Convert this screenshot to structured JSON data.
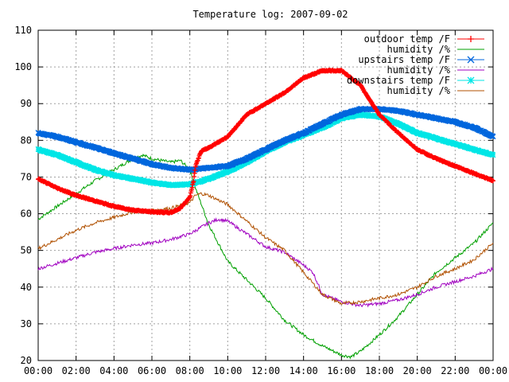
{
  "chart_data": {
    "type": "line",
    "title": "Temperature log: 2007-09-02",
    "xlabel": "",
    "ylabel": "",
    "xlim": [
      0,
      24
    ],
    "ylim": [
      20,
      110
    ],
    "grid": true,
    "legend_position": "top-right",
    "x_ticks": [
      "00:00",
      "02:00",
      "04:00",
      "06:00",
      "08:00",
      "10:00",
      "12:00",
      "14:00",
      "16:00",
      "18:00",
      "20:00",
      "22:00",
      "00:00"
    ],
    "y_ticks": [
      "20",
      "30",
      "40",
      "50",
      "60",
      "70",
      "80",
      "90",
      "100",
      "110"
    ],
    "series": [
      {
        "name": "outdoor temp /F",
        "color": "#ff0000",
        "marker": "plus",
        "x": [
          0,
          1,
          2,
          3,
          4,
          5,
          6,
          7,
          7.5,
          8,
          8.2,
          8.3,
          8.6,
          9,
          10,
          11,
          12,
          13,
          14,
          15,
          16,
          17,
          17.5,
          18,
          19,
          20,
          21,
          22,
          23,
          24
        ],
        "y": [
          69.5,
          67,
          65,
          63.5,
          62,
          61,
          60.5,
          60.3,
          61.5,
          64.5,
          69,
          73,
          77,
          78,
          81,
          87,
          90,
          93,
          97,
          99,
          99,
          95,
          91,
          87,
          82,
          77.5,
          75,
          73,
          71,
          69
        ]
      },
      {
        "name": "humidity /%",
        "color": "#00a000",
        "x": [
          0,
          1,
          2,
          3,
          4,
          5,
          5.5,
          6,
          7,
          7.5,
          8,
          8.3,
          9,
          10,
          11,
          12,
          13,
          14,
          15,
          16,
          16.5,
          17,
          18,
          19,
          20,
          21,
          22,
          23,
          24
        ],
        "y": [
          58.5,
          62,
          65.5,
          69,
          72,
          75,
          76,
          75,
          74,
          74.5,
          72,
          67,
          57,
          47,
          42,
          37,
          31,
          27,
          24,
          21.5,
          21,
          22.5,
          27,
          32,
          38,
          44,
          48,
          52,
          57.5
        ]
      },
      {
        "name": "upstairs temp /F",
        "color": "#0066dd",
        "marker": "cross",
        "x": [
          0,
          1,
          2,
          3,
          4,
          5,
          6,
          7,
          8,
          9,
          10,
          11,
          12,
          13,
          14,
          15,
          16,
          17,
          18,
          19,
          20,
          21,
          22,
          23,
          24
        ],
        "y": [
          82,
          81,
          79.5,
          78,
          76.5,
          75,
          73.5,
          72.5,
          72,
          72.5,
          73,
          75,
          77.5,
          80,
          82,
          84.5,
          87,
          88.5,
          88.5,
          88,
          87,
          86,
          85,
          83.5,
          81
        ]
      },
      {
        "name": "humidity /%",
        "color": "#a000c0",
        "x": [
          0,
          1,
          2,
          3,
          4,
          5,
          6,
          7,
          8,
          8.5,
          9,
          9.5,
          10,
          11,
          12,
          13,
          14,
          14.5,
          15,
          16,
          17,
          18,
          19,
          20,
          21,
          22,
          23,
          24
        ],
        "y": [
          45,
          46.5,
          48,
          49.5,
          50.5,
          51.5,
          52,
          53,
          54.5,
          56,
          57.5,
          58.5,
          58,
          54.5,
          51,
          49.5,
          46,
          44,
          38,
          36,
          35,
          35.5,
          36.5,
          38,
          40,
          41.5,
          43,
          45
        ]
      },
      {
        "name": "downstairs temp /F",
        "color": "#00e6e6",
        "marker": "star",
        "x": [
          0,
          1,
          2,
          3,
          4,
          5,
          6,
          7,
          8,
          9,
          10,
          11,
          12,
          13,
          14,
          15,
          16,
          17,
          18,
          19,
          20,
          21,
          22,
          23,
          24
        ],
        "y": [
          77.5,
          76,
          74,
          72,
          70.5,
          69.5,
          68.5,
          67.8,
          68,
          69.5,
          71.5,
          74,
          77,
          79.5,
          81.5,
          83.5,
          86,
          87,
          86.5,
          84.5,
          82,
          80.5,
          79,
          77.5,
          76
        ]
      },
      {
        "name": "humidity /%",
        "color": "#b05000",
        "x": [
          0,
          1,
          2,
          3,
          4,
          5,
          6,
          7,
          8,
          8.3,
          8.6,
          9,
          10,
          11,
          12,
          13,
          14,
          15,
          16,
          17,
          18,
          19,
          20,
          21,
          22,
          23,
          24
        ],
        "y": [
          50.5,
          53,
          55.5,
          57.5,
          59,
          60.5,
          61,
          61.5,
          63,
          65,
          65.5,
          65,
          62.5,
          58,
          53.5,
          50,
          44,
          38,
          35.5,
          36,
          37,
          38,
          40,
          43,
          45,
          47.5,
          52
        ]
      }
    ]
  }
}
